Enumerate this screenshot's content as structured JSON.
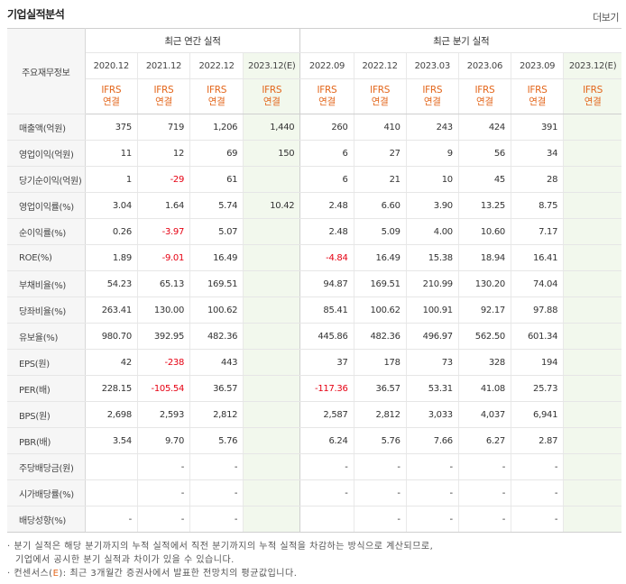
{
  "header": {
    "title": "기업실적분석",
    "more_label": "더보기"
  },
  "table": {
    "label_header": "주요재무정보",
    "annual_group": "최근 연간 실적",
    "quarterly_group": "최근 분기 실적",
    "annual_dates": [
      "2020.12",
      "2021.12",
      "2022.12",
      "2023.12(E)"
    ],
    "quarterly_dates": [
      "2022.09",
      "2022.12",
      "2023.03",
      "2023.06",
      "2023.09",
      "2023.12(E)"
    ],
    "ifrs_top": "IFRS",
    "ifrs_bottom": "연결",
    "rows": [
      {
        "label": "매출액(억원)",
        "values": [
          "375",
          "719",
          "1,206",
          "1,440",
          "260",
          "410",
          "243",
          "424",
          "391",
          ""
        ]
      },
      {
        "label": "영업이익(억원)",
        "values": [
          "11",
          "12",
          "69",
          "150",
          "6",
          "27",
          "9",
          "56",
          "34",
          ""
        ]
      },
      {
        "label": "당기순이익(억원)",
        "values": [
          "1",
          "-29",
          "61",
          "",
          "6",
          "21",
          "10",
          "45",
          "28",
          ""
        ]
      },
      {
        "label": "영업이익률(%)",
        "values": [
          "3.04",
          "1.64",
          "5.74",
          "10.42",
          "2.48",
          "6.60",
          "3.90",
          "13.25",
          "8.75",
          ""
        ]
      },
      {
        "label": "순이익률(%)",
        "values": [
          "0.26",
          "-3.97",
          "5.07",
          "",
          "2.48",
          "5.09",
          "4.00",
          "10.60",
          "7.17",
          ""
        ]
      },
      {
        "label": "ROE(%)",
        "values": [
          "1.89",
          "-9.01",
          "16.49",
          "",
          "-4.84",
          "16.49",
          "15.38",
          "18.94",
          "16.41",
          ""
        ]
      },
      {
        "label": "부채비율(%)",
        "values": [
          "54.23",
          "65.13",
          "169.51",
          "",
          "94.87",
          "169.51",
          "210.99",
          "130.20",
          "74.04",
          ""
        ]
      },
      {
        "label": "당좌비율(%)",
        "values": [
          "263.41",
          "130.00",
          "100.62",
          "",
          "85.41",
          "100.62",
          "100.91",
          "92.17",
          "97.88",
          ""
        ]
      },
      {
        "label": "유보율(%)",
        "values": [
          "980.70",
          "392.95",
          "482.36",
          "",
          "445.86",
          "482.36",
          "496.97",
          "562.50",
          "601.34",
          ""
        ]
      },
      {
        "label": "EPS(원)",
        "values": [
          "42",
          "-238",
          "443",
          "",
          "37",
          "178",
          "73",
          "328",
          "194",
          ""
        ]
      },
      {
        "label": "PER(배)",
        "values": [
          "228.15",
          "-105.54",
          "36.57",
          "",
          "-117.36",
          "36.57",
          "53.31",
          "41.08",
          "25.73",
          ""
        ]
      },
      {
        "label": "BPS(원)",
        "values": [
          "2,698",
          "2,593",
          "2,812",
          "",
          "2,587",
          "2,812",
          "3,033",
          "4,037",
          "6,941",
          ""
        ]
      },
      {
        "label": "PBR(배)",
        "values": [
          "3.54",
          "9.70",
          "5.76",
          "",
          "6.24",
          "5.76",
          "7.66",
          "6.27",
          "2.87",
          ""
        ]
      },
      {
        "label": "주당배당금(원)",
        "values": [
          "",
          "-",
          "-",
          "",
          "-",
          "-",
          "-",
          "-",
          "-",
          ""
        ]
      },
      {
        "label": "시가배당률(%)",
        "values": [
          "",
          "-",
          "-",
          "",
          "-",
          "-",
          "-",
          "-",
          "-",
          ""
        ]
      },
      {
        "label": "배당성향(%)",
        "values": [
          "-",
          "-",
          "-",
          "",
          "",
          "-",
          "-",
          "-",
          "-",
          ""
        ]
      }
    ]
  },
  "notes": {
    "line1": "분기 실적은 해당 분기까지의 누적 실적에서 직전 분기까지의 누적 실적을 차감하는 방식으로 계산되므로,",
    "line2": "기업에서 공시한 분기 실적과 차이가 있을 수 있습니다.",
    "line3_prefix": "컨센서스(",
    "line3_e": "E",
    "line3_suffix": "): 최근 3개월간 증권사에서 발표한 전망치의 평균값입니다."
  }
}
